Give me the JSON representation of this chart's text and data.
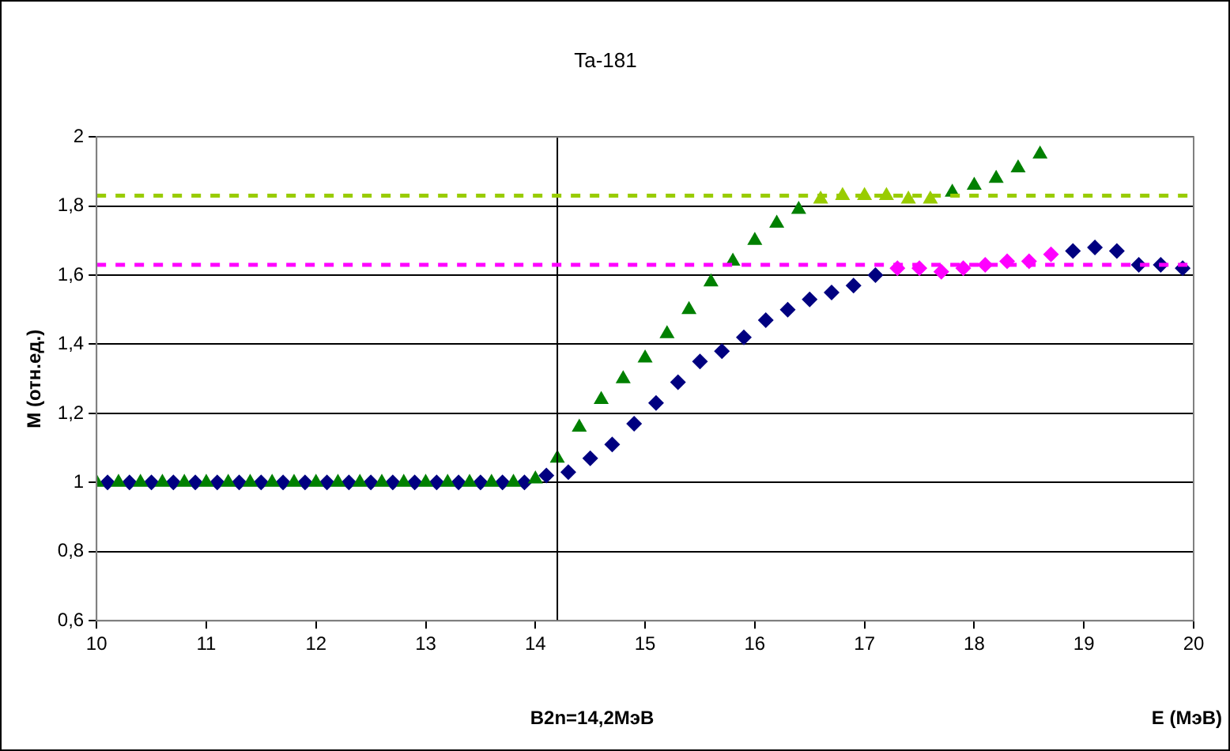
{
  "chart_data": {
    "type": "scatter",
    "title": "Ta-181",
    "xlabel": "E (МэВ)",
    "ylabel": "M (отн.ед.)",
    "xlim": [
      10,
      20
    ],
    "xticks": [
      10,
      11,
      12,
      13,
      14,
      15,
      16,
      17,
      18,
      19,
      20
    ],
    "ylim": [
      0.6,
      2
    ],
    "yticks": [
      {
        "value": 0.6,
        "label": "0,6"
      },
      {
        "value": 0.8,
        "label": "0,8"
      },
      {
        "value": 1,
        "label": "1"
      },
      {
        "value": 1.2,
        "label": "1,2"
      },
      {
        "value": 1.4,
        "label": "1,4"
      },
      {
        "value": 1.6,
        "label": "1,6"
      },
      {
        "value": 1.8,
        "label": "1,8"
      },
      {
        "value": 2,
        "label": "2"
      }
    ],
    "grid": "y",
    "legend": false,
    "ref_lines": [
      {
        "axis": "x",
        "value": 14.2,
        "label": "B2n=14,2МэВ",
        "color": "#000000",
        "line_style": "solid"
      },
      {
        "axis": "y",
        "value": 1.83,
        "label": null,
        "color": "#99cc00",
        "line_style": "dashed"
      },
      {
        "axis": "y",
        "value": 1.63,
        "label": null,
        "color": "#ff00ff",
        "line_style": "dashed"
      }
    ],
    "series": [
      {
        "type": "scatter",
        "marker": "triangle",
        "color": "#008000",
        "x": [
          10,
          10.2,
          10.4,
          10.6,
          10.8,
          11,
          11.2,
          11.4,
          11.6,
          11.8,
          12,
          12.2,
          12.4,
          12.6,
          12.8,
          13,
          13.2,
          13.4,
          13.6,
          13.8,
          14,
          14.2,
          14.4,
          14.6,
          14.8,
          15,
          15.2,
          15.4,
          15.6,
          15.8,
          16,
          16.2,
          16.4,
          17.8,
          18,
          18.2,
          18.4,
          18.6
        ],
        "values": [
          1,
          1,
          1,
          1,
          1,
          1,
          1,
          1,
          1,
          1,
          1,
          1,
          1,
          1,
          1,
          1,
          1,
          1,
          1,
          1,
          1.01,
          1.07,
          1.16,
          1.24,
          1.3,
          1.36,
          1.43,
          1.5,
          1.58,
          1.64,
          1.7,
          1.75,
          1.79,
          1.84,
          1.86,
          1.88,
          1.91,
          1.95
        ]
      },
      {
        "type": "scatter",
        "marker": "triangle",
        "color": "#99cc00",
        "x": [
          16.6,
          16.8,
          17,
          17.2,
          17.4,
          17.6
        ],
        "values": [
          1.82,
          1.83,
          1.83,
          1.83,
          1.82,
          1.82
        ]
      },
      {
        "type": "scatter",
        "marker": "diamond",
        "color": "#000080",
        "x": [
          10.1,
          10.3,
          10.5,
          10.7,
          10.9,
          11.1,
          11.3,
          11.5,
          11.7,
          11.9,
          12.1,
          12.3,
          12.5,
          12.7,
          12.9,
          13.1,
          13.3,
          13.5,
          13.7,
          13.9,
          14.1,
          14.3,
          14.5,
          14.7,
          14.9,
          15.1,
          15.3,
          15.5,
          15.7,
          15.9,
          16.1,
          16.3,
          16.5,
          16.7,
          16.9,
          17.1,
          18.9,
          19.1,
          19.3,
          19.5,
          19.7,
          19.9
        ],
        "values": [
          1,
          1,
          1,
          1,
          1,
          1,
          1,
          1,
          1,
          1,
          1,
          1,
          1,
          1,
          1,
          1,
          1,
          1,
          1,
          1,
          1.02,
          1.03,
          1.07,
          1.11,
          1.17,
          1.23,
          1.29,
          1.35,
          1.38,
          1.42,
          1.47,
          1.5,
          1.53,
          1.55,
          1.57,
          1.6,
          1.67,
          1.68,
          1.67,
          1.63,
          1.63,
          1.62
        ]
      },
      {
        "type": "scatter",
        "marker": "diamond",
        "color": "#ff00ff",
        "x": [
          17.3,
          17.5,
          17.7,
          17.9,
          18.1,
          18.3,
          18.5,
          18.7
        ],
        "values": [
          1.62,
          1.62,
          1.61,
          1.62,
          1.63,
          1.64,
          1.64,
          1.66
        ]
      }
    ]
  }
}
